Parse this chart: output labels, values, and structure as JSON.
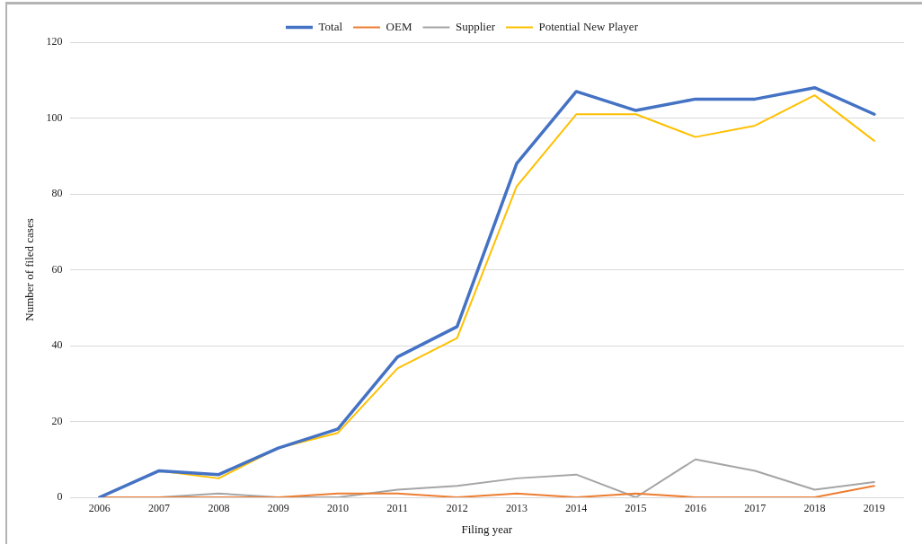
{
  "chart_data": {
    "type": "line",
    "xlabel": "Filing year",
    "ylabel": "Number of filed cases",
    "categories": [
      "2006",
      "2007",
      "2008",
      "2009",
      "2010",
      "2011",
      "2012",
      "2013",
      "2014",
      "2015",
      "2016",
      "2017",
      "2018",
      "2019"
    ],
    "series": [
      {
        "name": "Total",
        "color": "#4472c4",
        "values": [
          0,
          7,
          6,
          13,
          18,
          37,
          45,
          88,
          107,
          102,
          105,
          105,
          108,
          101
        ]
      },
      {
        "name": "OEM",
        "color": "#ed7d31",
        "values": [
          0,
          0,
          0,
          0,
          1,
          1,
          0,
          1,
          0,
          1,
          0,
          0,
          0,
          3
        ]
      },
      {
        "name": "Supplier",
        "color": "#a5a5a5",
        "values": [
          0,
          0,
          1,
          0,
          0,
          2,
          3,
          5,
          6,
          0,
          10,
          7,
          2,
          4
        ]
      },
      {
        "name": "Potential New Player",
        "color": "#ffc000",
        "values": [
          0,
          7,
          5,
          13,
          17,
          34,
          42,
          82,
          101,
          101,
          95,
          98,
          106,
          94
        ]
      }
    ],
    "ylim": [
      0,
      120
    ],
    "yticks": [
      0,
      20,
      40,
      60,
      80,
      100,
      120
    ],
    "grid": "y",
    "legend": "top",
    "marker": "none",
    "line_style": "solid"
  }
}
